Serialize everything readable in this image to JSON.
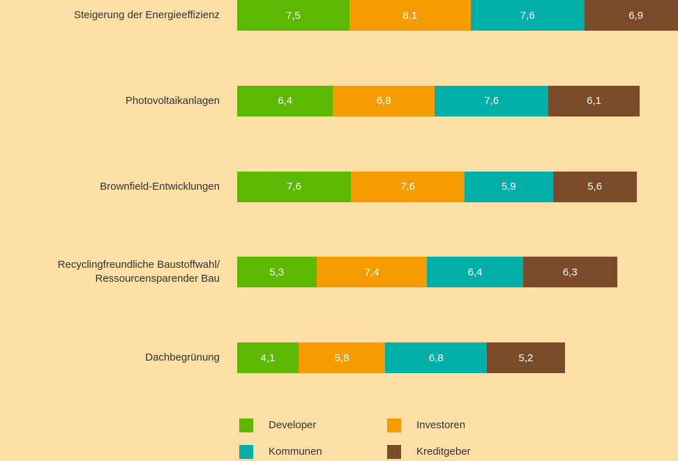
{
  "chart_data": {
    "type": "stacked-bar-horizontal",
    "categories": [
      "Steigerung der Energieeffizienz",
      "Photovoltaikanlagen",
      "Brownfield-Entwicklungen",
      "Recyclingfreundliche Baustoffwahl/\nRessourcensparender Bau",
      "Dachbegrünung"
    ],
    "series": [
      {
        "name": "Developer",
        "color": "#5cb800",
        "values": [
          7.5,
          6.4,
          7.6,
          5.3,
          4.1
        ],
        "value_labels": [
          "7,5",
          "6,4",
          "7,6",
          "5,3",
          "4,1"
        ]
      },
      {
        "name": "Investoren",
        "color": "#f59c00",
        "values": [
          8.1,
          6.8,
          7.6,
          7.4,
          5.8
        ],
        "value_labels": [
          "8,1",
          "6,8",
          "7,6",
          "7,4",
          "5,8"
        ]
      },
      {
        "name": "Kommunen",
        "color": "#00b0a8",
        "values": [
          7.6,
          7.6,
          5.9,
          6.4,
          6.8
        ],
        "value_labels": [
          "7,6",
          "7,6",
          "5,9",
          "6,4",
          "6,8"
        ]
      },
      {
        "name": "Kreditgeber",
        "color": "#7b4a28",
        "values": [
          6.9,
          6.1,
          5.6,
          6.3,
          5.2
        ],
        "value_labels": [
          "6,9",
          "6,1",
          "5,6",
          "6,3",
          "5,2"
        ]
      }
    ]
  }
}
